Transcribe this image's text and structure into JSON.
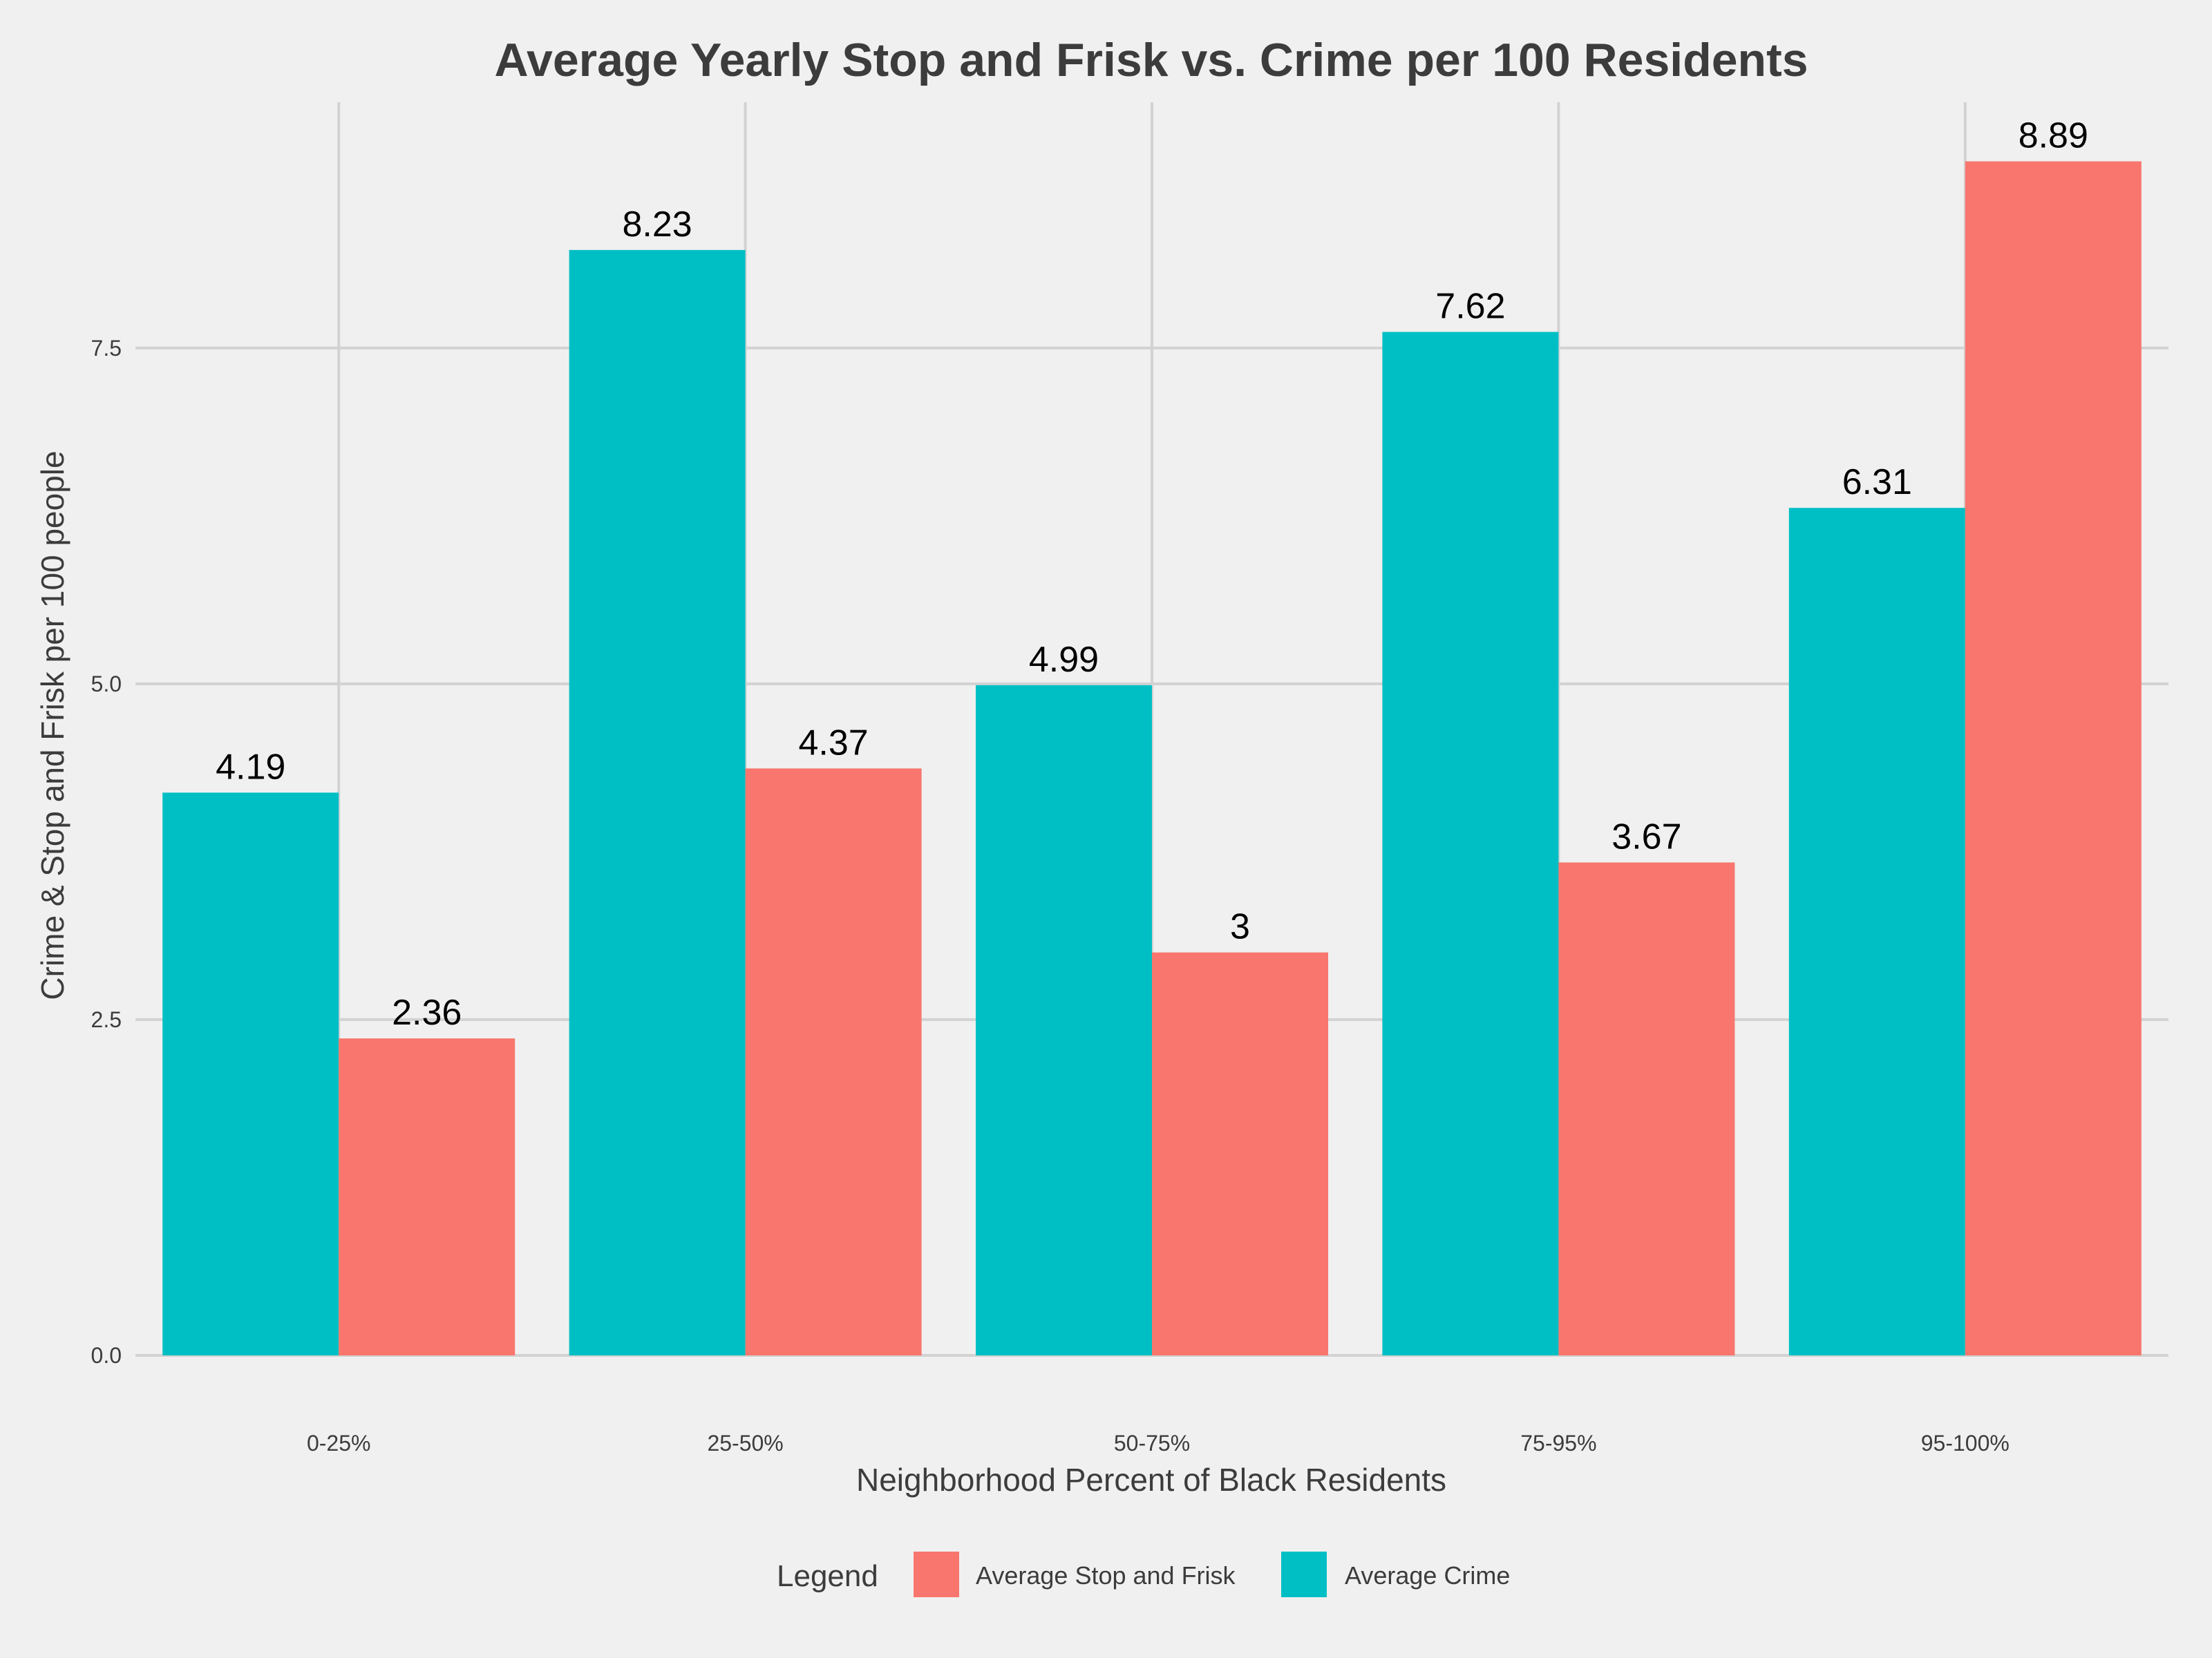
{
  "chart_data": {
    "type": "bar",
    "title": "Average Yearly Stop and Frisk vs. Crime per 100 Residents",
    "xlabel": "Neighborhood Percent of Black Residents",
    "ylabel": "Crime & Stop and Frisk per 100 people",
    "categories": [
      "0-25%",
      "25-50%",
      "50-75%",
      "75-95%",
      "95-100%"
    ],
    "series": [
      {
        "name": "Average Crime",
        "color": "#00bfc4",
        "values": [
          4.19,
          8.23,
          4.99,
          7.62,
          6.31
        ],
        "labels": [
          "4.19",
          "8.23",
          "4.99",
          "7.62",
          "6.31"
        ]
      },
      {
        "name": "Average Stop and Frisk",
        "color": "#f8766d",
        "values": [
          2.36,
          4.37,
          3,
          3.67,
          8.89
        ],
        "labels": [
          "2.36",
          "4.37",
          "3",
          "3.67",
          "8.89"
        ]
      }
    ],
    "yticks": [
      "0.0",
      "2.5",
      "5.0",
      "7.5"
    ],
    "ytick_values": [
      0,
      2.5,
      5,
      7.5
    ],
    "ylim": [
      0,
      9.33
    ],
    "grid": true,
    "legend": {
      "title": "Legend",
      "placement": "bottom",
      "entries": [
        {
          "label": "Average Stop and Frisk",
          "color": "#f8766d"
        },
        {
          "label": "Average Crime",
          "color": "#00bfc4"
        }
      ]
    }
  }
}
